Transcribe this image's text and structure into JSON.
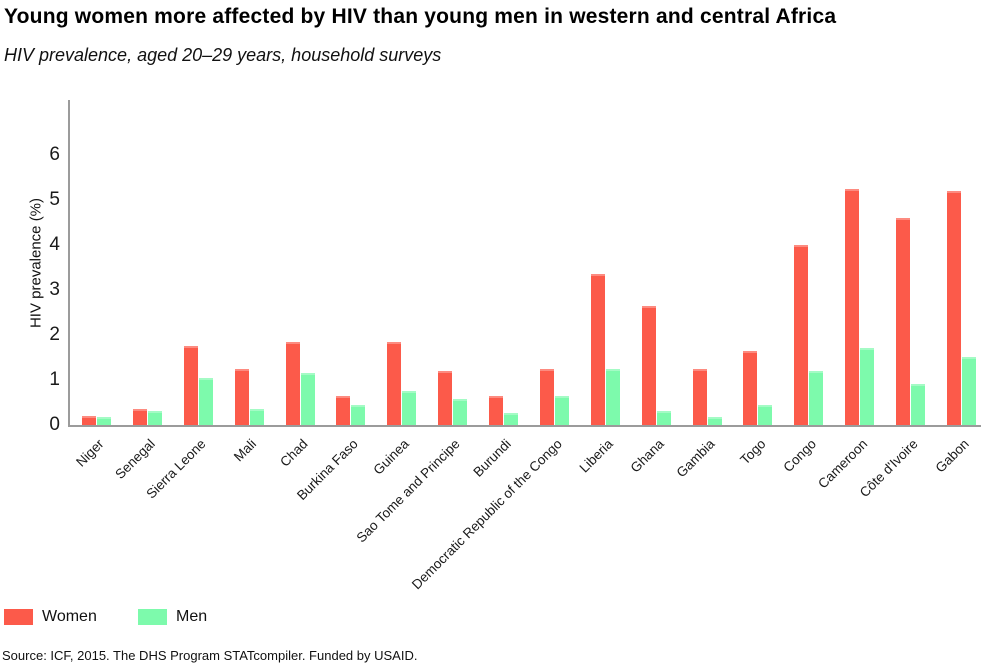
{
  "title": "Young women more affected by HIV than young men in western and central Africa",
  "subtitle": "HIV prevalence, aged 20–29 years, household surveys",
  "chart_data": {
    "type": "bar",
    "categories": [
      "Niger",
      "Senegal",
      "Sierra Leone",
      "Mali",
      "Chad",
      "Burkina Faso",
      "Guinea",
      "Sao Tome and Principe",
      "Burundi",
      "Democratic Republic of the Congo",
      "Liberia",
      "Ghana",
      "Gambia",
      "Togo",
      "Congo",
      "Cameroon",
      "Côte d'Ivoire",
      "Gabon"
    ],
    "series": [
      {
        "name": "Women",
        "color": "#fc5a4a",
        "values": [
          0.2,
          0.35,
          1.75,
          1.25,
          1.85,
          0.65,
          1.85,
          1.2,
          0.65,
          1.25,
          3.35,
          2.65,
          1.25,
          1.65,
          4.0,
          5.25,
          4.6,
          5.2
        ]
      },
      {
        "name": "Men",
        "color": "#7dfaac",
        "values": [
          0.18,
          0.3,
          1.05,
          0.35,
          1.15,
          0.45,
          0.75,
          0.57,
          0.27,
          0.64,
          1.25,
          0.3,
          0.17,
          0.45,
          1.2,
          1.7,
          0.9,
          1.5
        ]
      }
    ],
    "title": "Young women more affected by HIV than young men in western and central Africa",
    "xlabel": "",
    "ylabel": "HIV prevalence (%)",
    "yticks": [
      0,
      1,
      2,
      3,
      4,
      5,
      6
    ],
    "ylim": [
      0,
      7.2
    ],
    "grid": false,
    "legend_position": "bottom-left",
    "bar_orientation": "vertical"
  },
  "legend": {
    "items": [
      {
        "label": "Women",
        "color": "#fc5a4a"
      },
      {
        "label": "Men",
        "color": "#7dfaac"
      }
    ]
  },
  "source": "Source: ICF, 2015. The DHS Program STATcompiler. Funded by USAID.",
  "colors": {
    "women": "#fc5a4a",
    "men": "#7dfaac",
    "axis": "#9b9b9b",
    "text": "#111111"
  }
}
